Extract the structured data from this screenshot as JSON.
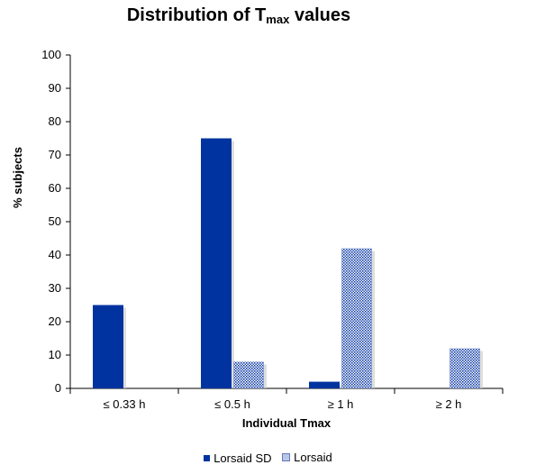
{
  "chart_data": {
    "type": "bar",
    "title_main": "Distribution of T",
    "title_sub": "max",
    "title_end": " values",
    "categories": [
      "≤ 0.33 h",
      "≤ 0.5 h",
      "≥ 1 h",
      "≥ 2 h"
    ],
    "series": [
      {
        "name": "Lorsaid SD",
        "values": [
          25,
          75,
          2,
          0
        ],
        "color": "#0033a0",
        "pattern": "solid"
      },
      {
        "name": "Lorsaid",
        "values": [
          0,
          8,
          42,
          12
        ],
        "color": "#0033a0",
        "pattern": "dotted"
      }
    ],
    "xlabel": "Individual Tmax",
    "ylabel": "% subjects",
    "ylim": [
      0,
      100
    ],
    "yticks": [
      "0",
      "10",
      "20",
      "30",
      "40",
      "50",
      "60",
      "70",
      "80",
      "90",
      "100"
    ],
    "grid": false,
    "legend_position": "bottom"
  }
}
